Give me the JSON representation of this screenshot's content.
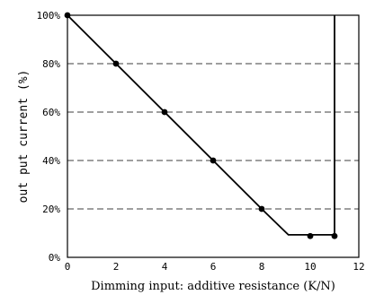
{
  "chart_data": {
    "type": "line",
    "xlabel": "Dimming input: additive resistance (K/N)",
    "ylabel": "out put current (%)",
    "xlim": [
      0,
      12
    ],
    "ylim": [
      0,
      100
    ],
    "x_ticks": [
      "0",
      "2",
      "4",
      "6",
      "8",
      "10",
      "12"
    ],
    "y_ticks": [
      "0%",
      "20%",
      "40%",
      "60%",
      "80%",
      "100%"
    ],
    "grid": "horizontal dashed at 20% intervals",
    "series": [
      {
        "line": [
          [
            0,
            100
          ],
          [
            2,
            80
          ],
          [
            4,
            60
          ],
          [
            6,
            40
          ],
          [
            8,
            20
          ],
          [
            9.1,
            9.3
          ],
          [
            11,
            9.3
          ],
          [
            11,
            100
          ]
        ],
        "markers": [
          [
            0,
            100
          ],
          [
            2,
            80
          ],
          [
            4,
            60
          ],
          [
            6,
            40
          ],
          [
            8,
            20
          ],
          [
            10,
            8.8
          ],
          [
            11,
            8.8
          ]
        ]
      }
    ]
  }
}
